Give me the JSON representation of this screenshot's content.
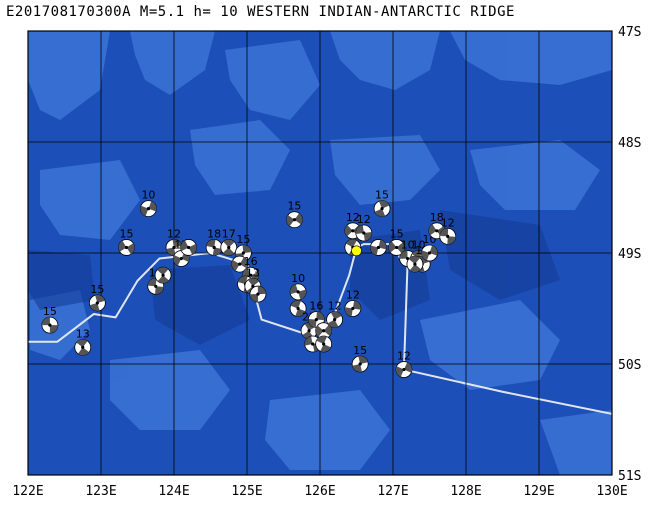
{
  "header": {
    "title": "E201708170300A M=5.1 h= 10 WESTERN INDIAN-ANTARCTIC RIDGE"
  },
  "axes": {
    "lon_labels": [
      "122E",
      "123E",
      "124E",
      "125E",
      "126E",
      "127E",
      "128E",
      "129E",
      "130E"
    ],
    "lat_labels": [
      "47S",
      "48S",
      "49S",
      "50S",
      "51S"
    ]
  },
  "colors": {
    "ocean_deep": "#1d4fb8",
    "ocean_shallow": "#3b73d6",
    "ridge_line": "#dfe6f0",
    "gridline": "#000000",
    "event_marker": "#ffff00",
    "beachball_fill": "#555555"
  },
  "plate_boundary": [
    [
      122,
      49.8
    ],
    [
      122.4,
      49.8
    ],
    [
      122.9,
      49.55
    ],
    [
      123.2,
      49.58
    ],
    [
      123.5,
      49.25
    ],
    [
      123.8,
      49.05
    ],
    [
      124.5,
      49.0
    ],
    [
      125.0,
      49.1
    ],
    [
      125.2,
      49.6
    ],
    [
      125.9,
      49.75
    ],
    [
      126.2,
      49.55
    ],
    [
      126.4,
      49.2
    ],
    [
      126.5,
      48.95
    ],
    [
      126.6,
      48.92
    ],
    [
      127.0,
      48.92
    ],
    [
      127.1,
      49.05
    ],
    [
      127.2,
      49.08
    ],
    [
      127.15,
      50.05
    ],
    [
      128.5,
      50.25
    ],
    [
      130,
      50.45
    ]
  ],
  "event": {
    "lon": 126.5,
    "lat": 48.98
  },
  "mechanisms": [
    {
      "lon": 122.3,
      "lat": 49.65,
      "mag": "15"
    },
    {
      "lon": 122.75,
      "lat": 49.85,
      "mag": "13"
    },
    {
      "lon": 122.95,
      "lat": 49.45,
      "mag": "15"
    },
    {
      "lon": 123.65,
      "lat": 48.6,
      "mag": "10"
    },
    {
      "lon": 123.35,
      "lat": 48.95,
      "mag": "15"
    },
    {
      "lon": 123.75,
      "lat": 49.3,
      "mag": "10"
    },
    {
      "lon": 123.85,
      "lat": 49.2,
      "mag": ""
    },
    {
      "lon": 124.0,
      "lat": 48.95,
      "mag": "12"
    },
    {
      "lon": 124.1,
      "lat": 49.05,
      "mag": "15"
    },
    {
      "lon": 124.2,
      "lat": 48.95,
      "mag": ""
    },
    {
      "lon": 124.55,
      "lat": 48.95,
      "mag": "18"
    },
    {
      "lon": 124.75,
      "lat": 48.95,
      "mag": "17"
    },
    {
      "lon": 124.95,
      "lat": 49.0,
      "mag": "15"
    },
    {
      "lon": 124.9,
      "lat": 49.1,
      "mag": ""
    },
    {
      "lon": 125.05,
      "lat": 49.2,
      "mag": "16"
    },
    {
      "lon": 124.98,
      "lat": 49.28,
      "mag": ""
    },
    {
      "lon": 125.08,
      "lat": 49.3,
      "mag": "13"
    },
    {
      "lon": 125.15,
      "lat": 49.37,
      "mag": ""
    },
    {
      "lon": 125.65,
      "lat": 48.7,
      "mag": "15"
    },
    {
      "lon": 125.7,
      "lat": 49.35,
      "mag": "10"
    },
    {
      "lon": 125.7,
      "lat": 49.5,
      "mag": ""
    },
    {
      "lon": 125.85,
      "lat": 49.7,
      "mag": "22"
    },
    {
      "lon": 125.95,
      "lat": 49.6,
      "mag": "16"
    },
    {
      "lon": 126.05,
      "lat": 49.7,
      "mag": ""
    },
    {
      "lon": 125.9,
      "lat": 49.82,
      "mag": ""
    },
    {
      "lon": 126.05,
      "lat": 49.82,
      "mag": ""
    },
    {
      "lon": 126.2,
      "lat": 49.6,
      "mag": "12"
    },
    {
      "lon": 126.45,
      "lat": 49.5,
      "mag": "12"
    },
    {
      "lon": 126.45,
      "lat": 48.8,
      "mag": "12"
    },
    {
      "lon": 126.6,
      "lat": 48.82,
      "mag": "12"
    },
    {
      "lon": 126.45,
      "lat": 48.95,
      "mag": ""
    },
    {
      "lon": 126.85,
      "lat": 48.6,
      "mag": "15"
    },
    {
      "lon": 126.8,
      "lat": 48.95,
      "mag": ""
    },
    {
      "lon": 127.05,
      "lat": 48.95,
      "mag": "15"
    },
    {
      "lon": 127.2,
      "lat": 49.05,
      "mag": "10"
    },
    {
      "lon": 127.35,
      "lat": 49.05,
      "mag": "10"
    },
    {
      "lon": 127.4,
      "lat": 49.1,
      "mag": "18"
    },
    {
      "lon": 127.5,
      "lat": 49.0,
      "mag": "10"
    },
    {
      "lon": 127.6,
      "lat": 48.8,
      "mag": "18"
    },
    {
      "lon": 127.75,
      "lat": 48.85,
      "mag": "12"
    },
    {
      "lon": 127.3,
      "lat": 49.1,
      "mag": ""
    },
    {
      "lon": 126.55,
      "lat": 50.0,
      "mag": "15"
    },
    {
      "lon": 127.15,
      "lat": 50.05,
      "mag": "12"
    }
  ]
}
